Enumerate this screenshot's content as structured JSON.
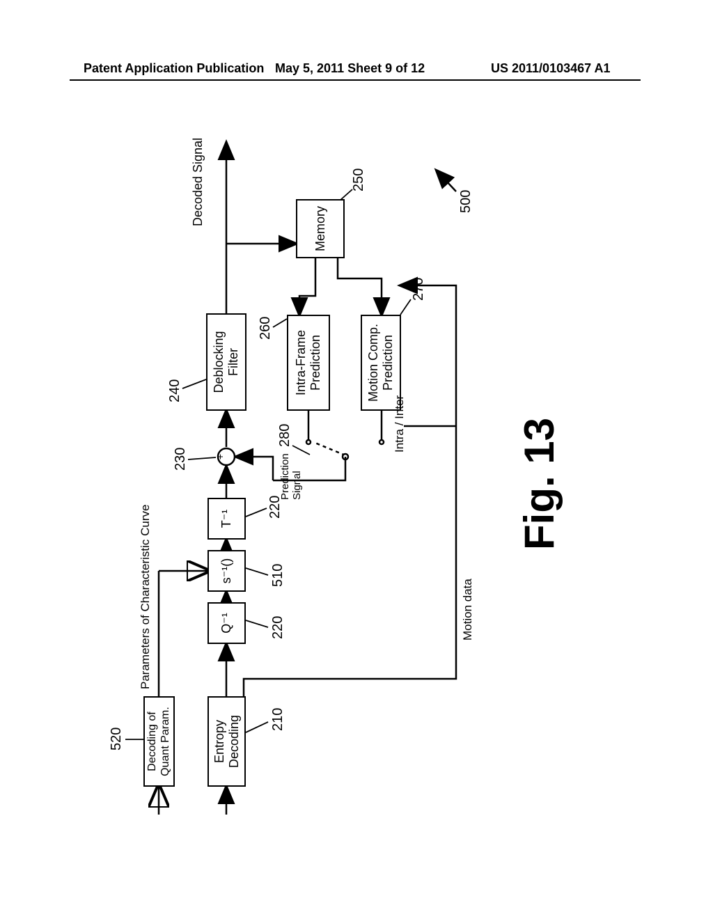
{
  "header": {
    "left": "Patent Application Publication",
    "center": "May 5, 2011  Sheet 9 of 12",
    "right": "US 2011/0103467 A1"
  },
  "blocks": {
    "decQuant": "Decoding of\nQuant Param.",
    "entropy": "Entropy\nDecoding",
    "qinv": "Q⁻¹",
    "sinv": "s⁻¹()",
    "tinv": "T⁻¹",
    "deblock": "Deblocking\nFilter",
    "intra": "Intra-Frame\nPrediction",
    "motion": "Motion Comp.\nPrediction",
    "memory": "Memory"
  },
  "labels": {
    "paramsCurve": "Parameters of Characteristic Curve",
    "motionData": "Motion data",
    "predSignal": "Prediction\nSignal",
    "intraInter": "Intra / Inter",
    "decoded": "Decoded Signal",
    "sumSym": "+"
  },
  "refs": {
    "r520": "520",
    "r210": "210",
    "r220a": "220",
    "r510": "510",
    "r220b": "220",
    "r230": "230",
    "r280": "280",
    "r240": "240",
    "r260": "260",
    "r270": "270",
    "r250": "250",
    "r500": "500"
  },
  "figure": "Fig. 13",
  "style": {
    "stroke": "#000000",
    "strokeWidth": 2.5,
    "leaderWidth": 1.8,
    "arrowSize": 10,
    "bg": "#ffffff"
  }
}
